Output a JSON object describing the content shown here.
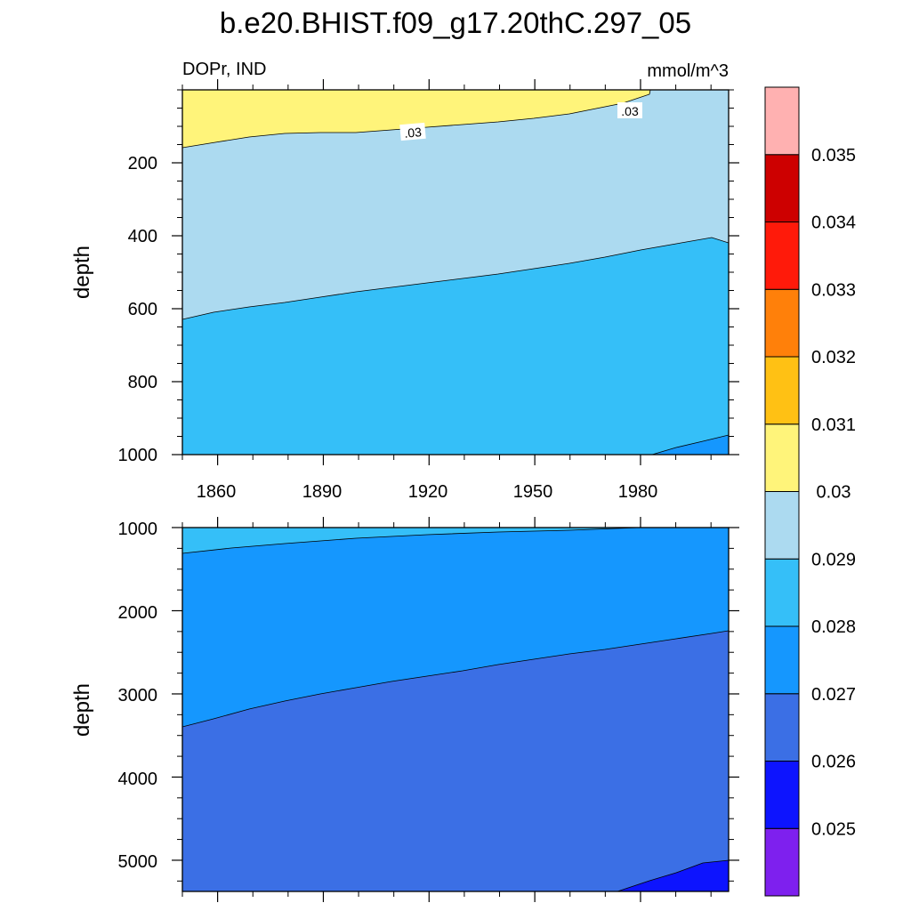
{
  "title": "b.e20.BHIST.f09_g17.20thC.297_05",
  "colors": {
    "background": "#ffffff",
    "frame": "#000000"
  },
  "chart_data": [
    {
      "type": "contour",
      "panel": "upper",
      "subtitle_left": "DOPr, IND",
      "subtitle_right": "mmol/m^3",
      "ylabel": "depth",
      "xlabel": "",
      "xlim": [
        1850,
        2005
      ],
      "ylim": [
        0,
        1000
      ],
      "y_reversed": true,
      "x_ticks": [
        1860,
        1890,
        1920,
        1950,
        1980
      ],
      "x_tick_labels": [
        "1860",
        "1890",
        "1920",
        "1950",
        "1980"
      ],
      "y_ticks": [
        200,
        400,
        600,
        800,
        1000
      ],
      "y_tick_labels": [
        "200",
        "400",
        "600",
        "800",
        "1000"
      ],
      "contour_lines": [
        {
          "level": 0.03,
          "label": ".03",
          "x": [
            1850,
            1880,
            1910,
            1940,
            1960,
            1975,
            1982
          ],
          "depth": [
            160,
            140,
            125,
            105,
            75,
            40,
            0
          ]
        },
        {
          "level": 0.029,
          "label": "",
          "x": [
            1850,
            1880,
            1910,
            1940,
            1970,
            2005
          ],
          "depth": [
            630,
            590,
            550,
            510,
            475,
            420
          ]
        },
        {
          "level": 0.028,
          "label": "",
          "x": [
            1981,
            1990,
            2005
          ],
          "depth": [
            1000,
            980,
            945
          ]
        }
      ],
      "regions": [
        {
          "range": "0.03-0.031",
          "color": "#fff47a"
        },
        {
          "range": "0.029-0.03",
          "color": "#acdaf0"
        },
        {
          "range": "0.028-0.029",
          "color": "#35bff8"
        },
        {
          "range": "0.027-0.028",
          "color": "#1597fe"
        }
      ],
      "contour_labels": [
        {
          "text": ".03",
          "x": 1914,
          "depth": 113
        },
        {
          "text": ".03",
          "x": 1973,
          "depth": 55
        }
      ]
    },
    {
      "type": "contour",
      "panel": "lower",
      "subtitle_left": "",
      "subtitle_right": "",
      "ylabel": "depth",
      "xlabel": "",
      "xlim": [
        1850,
        2005
      ],
      "ylim": [
        1000,
        5375
      ],
      "y_reversed": true,
      "x_ticks": [
        1860,
        1890,
        1920,
        1950,
        1980
      ],
      "y_ticks": [
        1000,
        2000,
        3000,
        4000,
        5000
      ],
      "y_tick_labels": [
        "1000",
        "2000",
        "3000",
        "4000",
        "5000"
      ],
      "contour_lines": [
        {
          "level": 0.028,
          "label": "",
          "x": [
            1850,
            1880,
            1920,
            1960,
            1980
          ],
          "depth": [
            1300,
            1230,
            1130,
            1060,
            1000
          ]
        },
        {
          "level": 0.027,
          "label": "",
          "x": [
            1850,
            1880,
            1920,
            1960,
            2005
          ],
          "depth": [
            3400,
            3050,
            2850,
            2650,
            2400
          ]
        },
        {
          "level": 0.026,
          "label": "",
          "x": [
            1973,
            1990,
            2005
          ],
          "depth": [
            5375,
            5150,
            4980
          ]
        }
      ],
      "regions": [
        {
          "range": "0.028-0.029",
          "color": "#35bff8"
        },
        {
          "range": "0.027-0.028",
          "color": "#1597fe"
        },
        {
          "range": "0.026-0.027",
          "color": "#3b6fe5"
        },
        {
          "range": "0.025-0.026",
          "color": "#0d14fe"
        }
      ]
    }
  ],
  "colorbar": {
    "colors": [
      "#7e20ee",
      "#0d14fe",
      "#3b6fe5",
      "#1597fe",
      "#35bff8",
      "#acdaf0",
      "#fff47a",
      "#ffc114",
      "#ff800a",
      "#ff1a0a",
      "#cd0000",
      "#ffb1b1"
    ],
    "labels": [
      "0.025",
      "0.026",
      "0.027",
      "0.028",
      "0.029",
      "0.03",
      "0.031",
      "0.032",
      "0.033",
      "0.034",
      "0.035"
    ]
  }
}
